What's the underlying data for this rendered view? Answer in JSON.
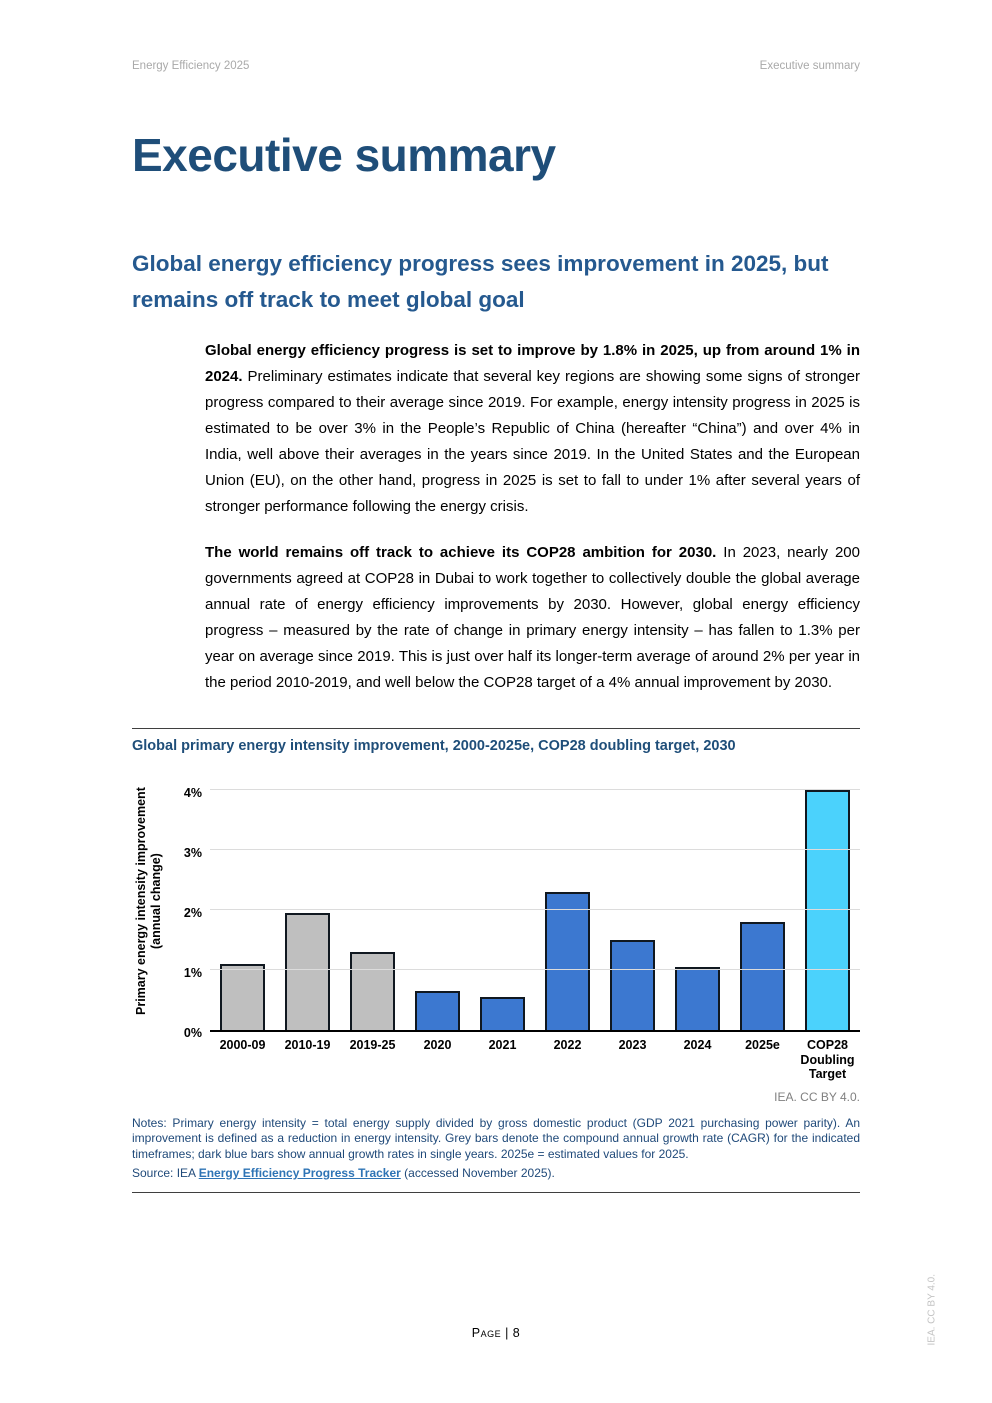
{
  "header": {
    "left": "Energy Efficiency 2025",
    "right": "Executive summary"
  },
  "title": "Executive summary",
  "section": {
    "heading": "Global energy efficiency progress sees improvement in 2025, but remains off track to meet global goal",
    "paragraphs": [
      {
        "lead": "Global energy efficiency progress is set to improve by 1.8% in 2025, up from around 1% in 2024.",
        "rest": " Preliminary estimates indicate that several key regions are showing some signs of stronger progress compared to their average since 2019. For example, energy intensity progress in 2025 is estimated to be over 3% in the People’s Republic of China (hereafter “China”) and over 4% in India, well above their averages in the years since 2019. In the United States and the European Union (EU), on the other hand, progress in 2025 is set to fall to under 1% after several years of stronger performance following the energy crisis."
      },
      {
        "lead": "The world remains off track to achieve its COP28 ambition for 2030.",
        "rest": " In 2023, nearly 200 governments agreed at COP28 in Dubai to work together to collectively double the global average annual rate of energy efficiency improvements by 2030. However, global energy efficiency progress – measured by the rate of change in primary energy intensity – has fallen to 1.3% per year on average since 2019. This is just over half its longer-term average of around 2% per year in the period 2010-2019, and well below the COP28 target of a 4% annual improvement by 2030."
      }
    ]
  },
  "figure": {
    "title": "Global primary energy intensity improvement, 2000-2025e, COP28 doubling target, 2030",
    "attribution": "IEA. CC BY 4.0.",
    "notes": "Notes: Primary energy intensity = total energy supply divided by gross domestic product (GDP 2021 purchasing power parity). An improvement is defined as a reduction in energy intensity. Grey bars denote the compound annual growth rate (CAGR) for the indicated timeframes; dark blue bars show annual growth rates in single years. 2025e = estimated values for 2025.",
    "source": {
      "prefix": "Source: IEA ",
      "link": "Energy Efficiency Progress Tracker",
      "suffix": " (accessed November 2025)."
    }
  },
  "chart_data": {
    "type": "bar",
    "title": "Global primary energy intensity improvement, 2000-2025e, COP28 doubling target, 2030",
    "categories": [
      "2000-09",
      "2010-19",
      "2019-25",
      "2020",
      "2021",
      "2022",
      "2023",
      "2024",
      "2025e",
      "COP28 Doubling Target"
    ],
    "values": [
      1.1,
      1.95,
      1.3,
      0.65,
      0.55,
      2.3,
      1.5,
      1.05,
      1.8,
      4.0
    ],
    "bar_color_keys": [
      "grey",
      "grey",
      "grey",
      "blue",
      "blue",
      "blue",
      "blue",
      "blue",
      "blue",
      "cyan"
    ],
    "colors": {
      "grey": "#BFBFBF",
      "blue": "#3C78D0",
      "cyan": "#4BD2FC"
    },
    "ylabel": "Primary energy intensity improvement (annual change)",
    "xlabel": "",
    "yticks": [
      "0%",
      "1%",
      "2%",
      "3%",
      "4%"
    ],
    "ylim": [
      0,
      4.35
    ],
    "grid": true,
    "legend": "none",
    "units": "% per year"
  },
  "footer": {
    "page": "Page | 8",
    "side_note": "IEA. CC BY 4.0."
  }
}
